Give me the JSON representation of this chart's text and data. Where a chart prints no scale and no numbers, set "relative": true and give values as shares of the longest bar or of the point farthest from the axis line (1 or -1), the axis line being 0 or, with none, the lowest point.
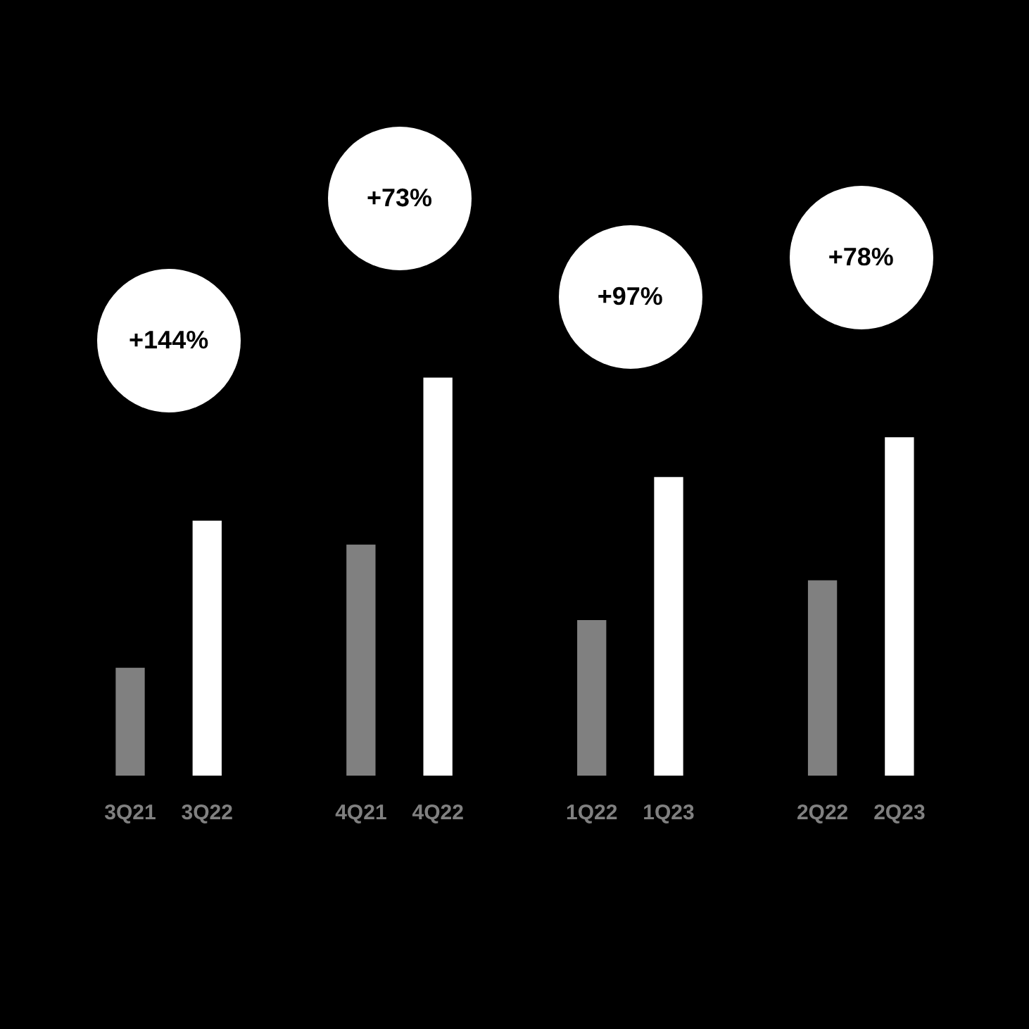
{
  "chart_data": {
    "type": "bar",
    "relative": true,
    "categories": [
      "3Q21",
      "3Q22",
      "4Q21",
      "4Q22",
      "1Q22",
      "1Q23",
      "2Q22",
      "2Q23"
    ],
    "values": [
      0.27,
      0.64,
      0.58,
      1,
      0.39,
      0.75,
      0.49,
      0.85
    ],
    "colors": [
      "#808080",
      "#ffffff",
      "#808080",
      "#ffffff",
      "#808080",
      "#ffffff",
      "#808080",
      "#ffffff"
    ],
    "annotations": [
      "+144%",
      "+73%",
      "+97%",
      "+78%"
    ]
  }
}
